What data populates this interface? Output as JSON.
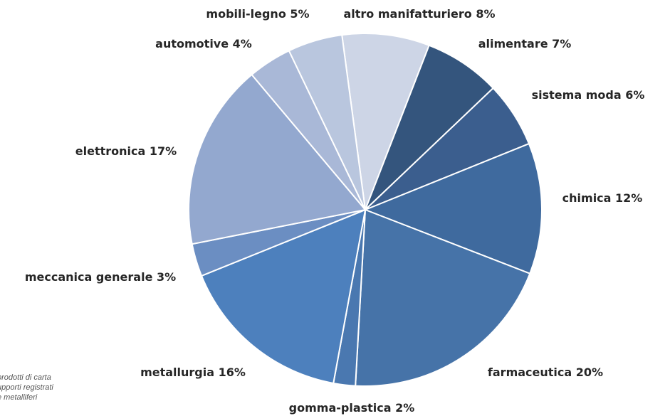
{
  "chart_data": {
    "type": "pie",
    "categories": [
      "altro manifatturiero",
      "alimentare",
      "sistema moda",
      "chimica",
      "farmaceutica",
      "gomma-plastica",
      "metallurgia",
      "meccanica generale",
      "elettronica",
      "automotive",
      "mobili-legno"
    ],
    "values": [
      8,
      7,
      6,
      12,
      20,
      2,
      16,
      3,
      17,
      4,
      5
    ],
    "value_labels": [
      "8%",
      "7%",
      "6%",
      "12%",
      "20%",
      "2%",
      "16%",
      "3%",
      "17%",
      "4%",
      "5%"
    ],
    "colors": [
      "#cdd5e6",
      "#34557d",
      "#3b5e8e",
      "#3f6a9e",
      "#4673a8",
      "#4a78b0",
      "#4d80bd",
      "#6b8ec2",
      "#93a8cf",
      "#a9b8d7",
      "#b9c6de"
    ],
    "notes": [
      "prodotti di carta",
      "upporti registrati",
      "e metalliferi"
    ]
  }
}
